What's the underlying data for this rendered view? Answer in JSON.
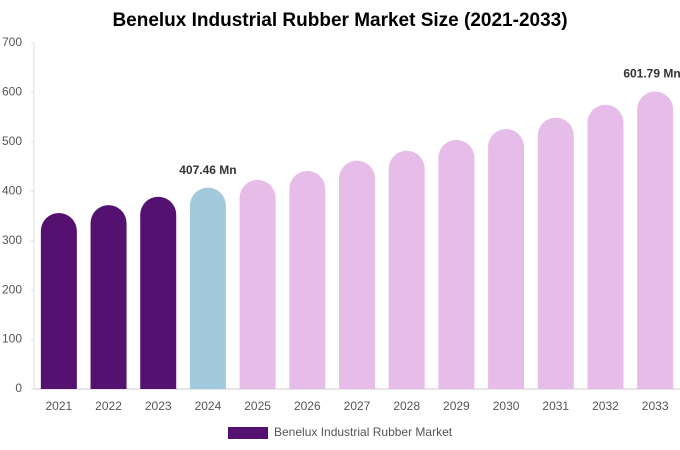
{
  "chart_data": {
    "type": "bar",
    "title": "Benelux Industrial Rubber Market Size (2021-2033)",
    "categories": [
      "2021",
      "2022",
      "2023",
      "2024",
      "2025",
      "2026",
      "2027",
      "2028",
      "2029",
      "2030",
      "2031",
      "2032",
      "2033"
    ],
    "series": [
      {
        "name": "Benelux Industrial Rubber Market",
        "color": "#541170",
        "values": [
          356,
          372,
          389,
          407.46,
          423,
          441,
          462,
          482,
          504,
          526,
          549,
          575,
          601.79
        ],
        "colors": [
          "#541170",
          "#541170",
          "#541170",
          "#a3c9dd",
          "#e6bde8",
          "#e6bde8",
          "#e6bde8",
          "#e6bde8",
          "#e6bde8",
          "#e6bde8",
          "#e6bde8",
          "#e6bde8",
          "#e6bde8"
        ],
        "value_labels": [
          null,
          null,
          null,
          "407.46 Mn",
          null,
          null,
          null,
          null,
          null,
          null,
          null,
          null,
          "601.79 Mn"
        ]
      }
    ],
    "ylim": [
      0,
      700
    ],
    "yticks": [
      0,
      100,
      200,
      300,
      400,
      500,
      600,
      700
    ],
    "grid": false,
    "legend": "bottom"
  }
}
